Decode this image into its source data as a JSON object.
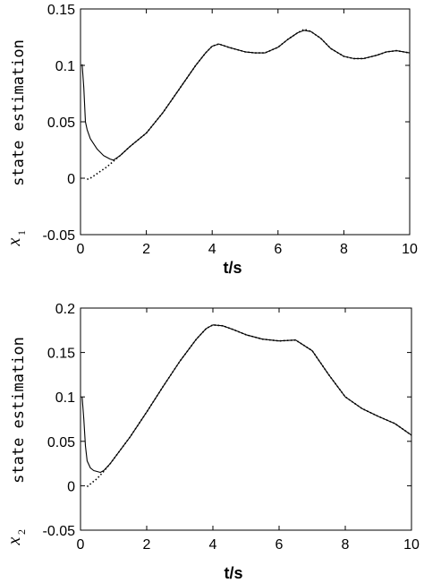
{
  "chart_data": [
    {
      "type": "line",
      "xlabel": "t/s",
      "ylabel": "state estimation",
      "ylabel_symbol": "x",
      "ylabel_subscript": "1",
      "xlim": [
        0,
        10
      ],
      "ylim": [
        -0.05,
        0.15
      ],
      "xticks": [
        0,
        2,
        4,
        6,
        8,
        10
      ],
      "xtick_labels": [
        "0",
        "2",
        "4",
        "6",
        "8",
        "10"
      ],
      "yticks": [
        -0.05,
        0,
        0.05,
        0.1,
        0.15
      ],
      "ytick_labels": [
        "-0.05",
        "0",
        "0.05",
        "0.1",
        "0.15"
      ],
      "grid": false,
      "series": [
        {
          "style": "solid",
          "x": [
            0.05,
            0.1,
            0.15,
            0.2,
            0.3,
            0.5,
            0.7,
            0.9,
            1.0,
            1.2,
            1.5,
            2.0,
            2.5,
            3.0,
            3.5,
            3.8,
            4.0,
            4.2,
            4.5,
            5.0,
            5.3,
            5.6,
            6.0,
            6.3,
            6.6,
            6.8,
            7.0,
            7.3,
            7.6,
            8.0,
            8.3,
            8.6,
            9.0,
            9.3,
            9.6,
            10.0
          ],
          "y": [
            0.101,
            0.08,
            0.05,
            0.043,
            0.035,
            0.026,
            0.02,
            0.017,
            0.016,
            0.02,
            0.028,
            0.04,
            0.058,
            0.079,
            0.1,
            0.111,
            0.117,
            0.119,
            0.116,
            0.112,
            0.111,
            0.111,
            0.116,
            0.123,
            0.129,
            0.131,
            0.13,
            0.124,
            0.115,
            0.108,
            0.106,
            0.106,
            0.109,
            0.112,
            0.113,
            0.111
          ]
        },
        {
          "style": "dotted",
          "x": [
            0.2,
            0.3,
            0.4,
            0.5,
            0.6,
            0.8,
            1.0,
            1.2,
            1.5,
            2.0,
            2.5,
            3.0,
            3.5,
            3.8,
            4.0,
            4.2,
            4.5,
            5.0,
            5.3,
            5.6,
            6.0,
            6.3,
            6.6,
            6.8,
            7.0,
            7.3,
            7.6,
            8.0,
            8.3,
            8.6,
            9.0,
            9.3,
            9.6,
            10.0
          ],
          "y": [
            -0.001,
            0.0,
            0.002,
            0.004,
            0.006,
            0.01,
            0.015,
            0.02,
            0.028,
            0.04,
            0.058,
            0.079,
            0.1,
            0.111,
            0.117,
            0.119,
            0.116,
            0.112,
            0.111,
            0.111,
            0.116,
            0.123,
            0.129,
            0.132,
            0.13,
            0.124,
            0.115,
            0.108,
            0.106,
            0.106,
            0.109,
            0.112,
            0.113,
            0.111
          ]
        }
      ]
    },
    {
      "type": "line",
      "xlabel": "t/s",
      "ylabel": "state estimation",
      "ylabel_symbol": "x",
      "ylabel_subscript": "2",
      "xlim": [
        0,
        10
      ],
      "ylim": [
        -0.05,
        0.2
      ],
      "xticks": [
        0,
        2,
        4,
        6,
        8,
        10
      ],
      "xtick_labels": [
        "0",
        "2",
        "4",
        "6",
        "8",
        "10"
      ],
      "yticks": [
        -0.05,
        0,
        0.05,
        0.1,
        0.15,
        0.2
      ],
      "ytick_labels": [
        "-0.05",
        "0",
        "0.05",
        "0.1",
        "0.15",
        "0.2"
      ],
      "grid": false,
      "series": [
        {
          "style": "solid",
          "x": [
            0.05,
            0.1,
            0.15,
            0.2,
            0.3,
            0.4,
            0.5,
            0.6,
            0.7,
            0.9,
            1.2,
            1.5,
            2.0,
            2.5,
            3.0,
            3.5,
            3.8,
            4.0,
            4.3,
            4.6,
            5.0,
            5.5,
            6.0,
            6.5,
            7.0,
            7.5,
            8.0,
            8.5,
            9.0,
            9.5,
            10.0
          ],
          "y": [
            0.1,
            0.075,
            0.045,
            0.028,
            0.02,
            0.017,
            0.016,
            0.015,
            0.017,
            0.025,
            0.04,
            0.055,
            0.083,
            0.112,
            0.14,
            0.165,
            0.177,
            0.181,
            0.18,
            0.176,
            0.17,
            0.165,
            0.163,
            0.164,
            0.152,
            0.125,
            0.1,
            0.087,
            0.078,
            0.07,
            0.057
          ]
        },
        {
          "style": "dotted",
          "x": [
            0.2,
            0.3,
            0.4,
            0.5,
            0.6,
            0.7,
            0.9,
            1.2,
            1.5,
            2.0,
            2.5,
            3.0,
            3.5,
            3.8,
            4.0,
            4.3,
            4.6,
            5.0,
            5.5,
            6.0,
            6.5,
            7.0,
            7.5,
            8.0,
            8.5,
            9.0,
            9.5,
            10.0
          ],
          "y": [
            -0.001,
            0.002,
            0.005,
            0.008,
            0.012,
            0.016,
            0.025,
            0.04,
            0.055,
            0.083,
            0.112,
            0.14,
            0.165,
            0.177,
            0.181,
            0.18,
            0.176,
            0.17,
            0.165,
            0.163,
            0.164,
            0.152,
            0.125,
            0.1,
            0.087,
            0.078,
            0.07,
            0.057
          ]
        }
      ]
    }
  ]
}
